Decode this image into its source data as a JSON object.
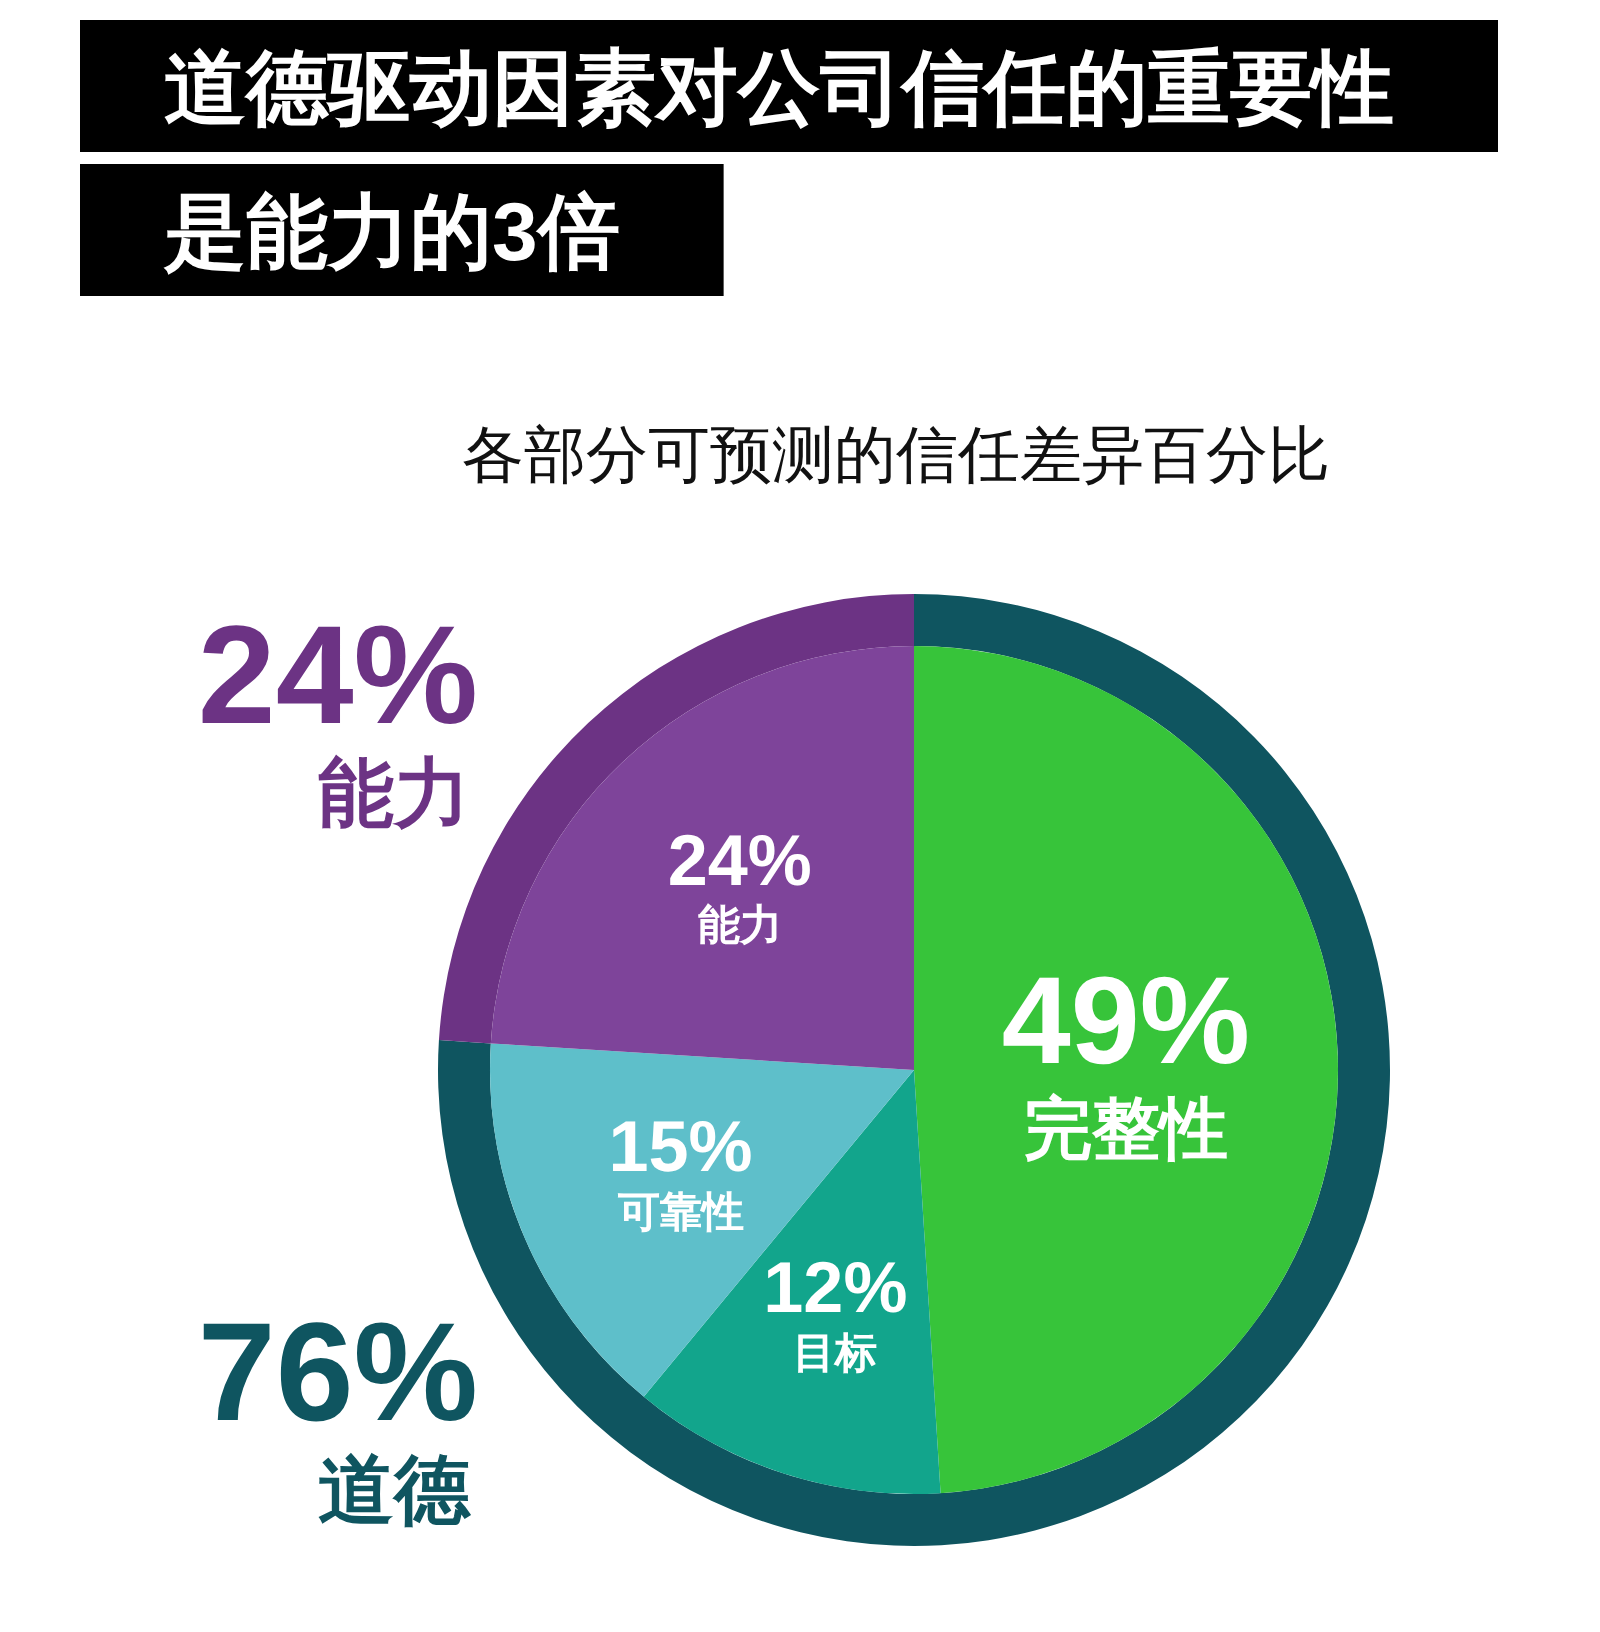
{
  "chart_data": [
    {
      "type": "donut",
      "title": "道德驱动因素对公司信任的重要性是能力的3倍",
      "subtitle": "各部分可预测的信任差异百分比",
      "categories": [
        "道德",
        "能力"
      ],
      "values": [
        76,
        24
      ],
      "colors": [
        "#0f5560",
        "#6c3384"
      ],
      "value_labels": [
        "76%",
        "24%"
      ]
    },
    {
      "type": "pie",
      "categories": [
        "完整性",
        "目标",
        "可靠性",
        "能力"
      ],
      "values": [
        49,
        12,
        15,
        24
      ],
      "colors": [
        "#37c43a",
        "#12a58c",
        "#5ebfca",
        "#7e449a"
      ],
      "value_labels": [
        "49%",
        "12%",
        "15%",
        "24%"
      ]
    }
  ]
}
